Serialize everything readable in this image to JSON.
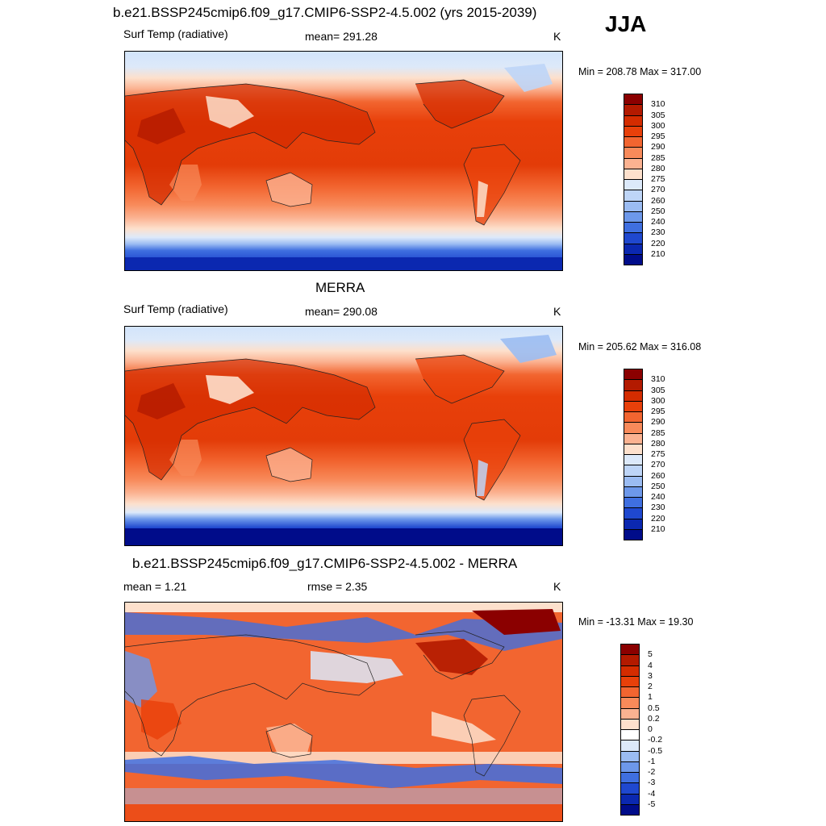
{
  "season": "JJA",
  "panels": [
    {
      "title": "b.e21.BSSP245cmip6.f09_g17.CMIP6-SSP2-4.5.002 (yrs 2015-2039)",
      "left_label": "Surf Temp (radiative)",
      "center_label": "mean= 291.28",
      "units": "K",
      "minmax": "Min = 208.78 Max = 317.00",
      "levels": [
        "310",
        "305",
        "300",
        "295",
        "290",
        "285",
        "280",
        "275",
        "270",
        "260",
        "250",
        "240",
        "230",
        "220",
        "210"
      ],
      "colors": [
        "#8b0000",
        "#b31a00",
        "#d42c00",
        "#e8400a",
        "#f26530",
        "#f88a5a",
        "#fbb291",
        "#fde0cc",
        "#dce9fa",
        "#bed5f7",
        "#9bbcf2",
        "#6d98ea",
        "#3f6fe0",
        "#1f48cf",
        "#0b28b0",
        "#000c8a"
      ]
    },
    {
      "title": "MERRA",
      "left_label": "Surf Temp (radiative)",
      "center_label": "mean= 290.08",
      "units": "K",
      "minmax": "Min = 205.62 Max = 316.08",
      "levels": [
        "310",
        "305",
        "300",
        "295",
        "290",
        "285",
        "280",
        "275",
        "270",
        "260",
        "250",
        "240",
        "230",
        "220",
        "210"
      ],
      "colors": [
        "#8b0000",
        "#b31a00",
        "#d42c00",
        "#e8400a",
        "#f26530",
        "#f88a5a",
        "#fbb291",
        "#fde0cc",
        "#dce9fa",
        "#bed5f7",
        "#9bbcf2",
        "#6d98ea",
        "#3f6fe0",
        "#1f48cf",
        "#0b28b0",
        "#000c8a"
      ]
    },
    {
      "title": "b.e21.BSSP245cmip6.f09_g17.CMIP6-SSP2-4.5.002 - MERRA",
      "left_label": "mean =   1.21",
      "center_label": "rmse =   2.35",
      "units": "K",
      "minmax": "Min = -13.31 Max =  19.30",
      "levels": [
        "5",
        "4",
        "3",
        "2",
        "1",
        "0.5",
        "0.2",
        "0",
        "-0.2",
        "-0.5",
        "-1",
        "-2",
        "-3",
        "-4",
        "-5"
      ],
      "colors": [
        "#8b0000",
        "#b31a00",
        "#d42c00",
        "#e8400a",
        "#f26530",
        "#f88a5a",
        "#fbb291",
        "#fde0cc",
        "#ffffff",
        "#dce9fa",
        "#9bbcf2",
        "#6d98ea",
        "#3f6fe0",
        "#1f48cf",
        "#0b28b0",
        "#000c8a"
      ]
    }
  ]
}
